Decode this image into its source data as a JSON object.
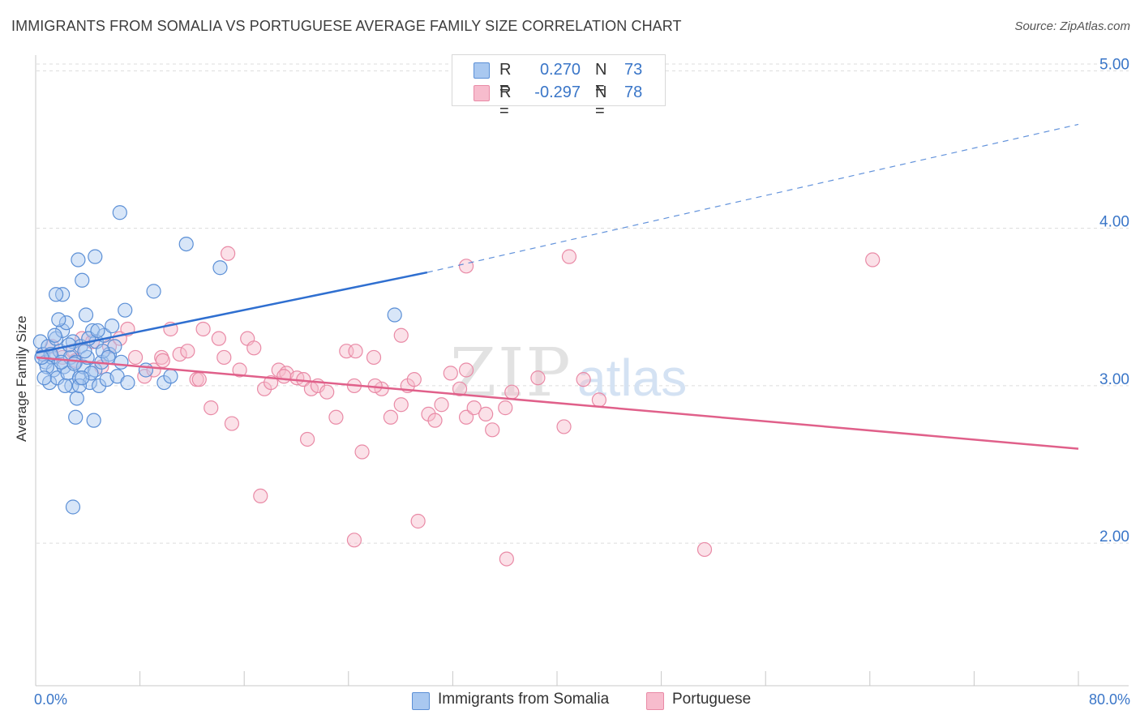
{
  "title": "IMMIGRANTS FROM SOMALIA VS PORTUGUESE AVERAGE FAMILY SIZE CORRELATION CHART",
  "source": "Source: ZipAtlas.com",
  "watermark": {
    "zip": "ZIP",
    "atlas": "atlas"
  },
  "colors": {
    "blue_fill": "#a9c8f0",
    "blue_stroke": "#5b8fd6",
    "blue_line": "#2f6fd0",
    "pink_fill": "#f7bccd",
    "pink_stroke": "#e98aa6",
    "pink_line": "#e0608a",
    "accent_text": "#3a76c8",
    "grid": "#dcdcdc"
  },
  "legend_top": {
    "rows": [
      {
        "r_label": "R =",
        "r_value": "0.270",
        "n_label": "N =",
        "n_value": "73"
      },
      {
        "r_label": "R =",
        "r_value": "-0.297",
        "n_label": "N =",
        "n_value": "78"
      }
    ]
  },
  "legend_bottom": {
    "items": [
      "Immigrants from Somalia",
      "Portuguese"
    ]
  },
  "chart_data": {
    "type": "scatter",
    "title": "IMMIGRANTS FROM SOMALIA VS PORTUGUESE AVERAGE FAMILY SIZE CORRELATION CHART",
    "xlabel": "",
    "ylabel": "Average Family Size",
    "x_tick_labels": [
      "0.0%",
      "80.0%"
    ],
    "xlim": [
      0,
      80
    ],
    "ylim": [
      1.1,
      5.1
    ],
    "y_ticks": [
      2.0,
      3.0,
      4.0,
      5.0
    ],
    "y_tick_labels": [
      "2.00",
      "3.00",
      "4.00",
      "5.00"
    ],
    "grid": true,
    "legend_position": "top-center",
    "series": [
      {
        "name": "Immigrants from Somalia",
        "r": 0.27,
        "n": 73,
        "trend": {
          "x0": 0,
          "y0": 3.21,
          "x_solid_end": 30,
          "y_solid_end": 3.72,
          "x1": 80,
          "y1": 4.66
        },
        "points": [
          [
            0.3,
            3.28
          ],
          [
            0.5,
            3.2
          ],
          [
            0.7,
            3.15
          ],
          [
            0.9,
            3.25
          ],
          [
            1.0,
            3.02
          ],
          [
            1.2,
            3.18
          ],
          [
            1.3,
            3.1
          ],
          [
            1.5,
            3.3
          ],
          [
            1.6,
            3.05
          ],
          [
            1.8,
            3.22
          ],
          [
            2.0,
            3.35
          ],
          [
            2.1,
            3.12
          ],
          [
            2.3,
            3.4
          ],
          [
            2.4,
            3.08
          ],
          [
            2.6,
            3.18
          ],
          [
            2.7,
            3.0
          ],
          [
            2.8,
            3.28
          ],
          [
            3.0,
            3.15
          ],
          [
            3.1,
            2.92
          ],
          [
            3.3,
            3.05
          ],
          [
            3.4,
            3.25
          ],
          [
            3.6,
            3.12
          ],
          [
            3.8,
            3.45
          ],
          [
            3.9,
            3.18
          ],
          [
            4.1,
            3.02
          ],
          [
            4.3,
            3.35
          ],
          [
            4.5,
            3.1
          ],
          [
            4.6,
            3.28
          ],
          [
            4.8,
            3.0
          ],
          [
            5.0,
            3.15
          ],
          [
            5.2,
            3.32
          ],
          [
            5.4,
            3.04
          ],
          [
            5.6,
            3.2
          ],
          [
            5.8,
            3.38
          ],
          [
            6.0,
            3.25
          ],
          [
            6.2,
            3.06
          ],
          [
            6.5,
            3.15
          ],
          [
            6.8,
            3.48
          ],
          [
            7.0,
            3.02
          ],
          [
            2.0,
            3.58
          ],
          [
            3.2,
            3.8
          ],
          [
            4.5,
            3.82
          ],
          [
            3.5,
            3.67
          ],
          [
            1.5,
            3.58
          ],
          [
            3.0,
            2.8
          ],
          [
            4.4,
            2.78
          ],
          [
            2.8,
            2.23
          ],
          [
            6.4,
            4.1
          ],
          [
            8.4,
            3.1
          ],
          [
            9.0,
            3.6
          ],
          [
            9.8,
            3.02
          ],
          [
            10.3,
            3.06
          ],
          [
            11.5,
            3.9
          ],
          [
            14.1,
            3.75
          ],
          [
            27.5,
            3.45
          ],
          [
            1.1,
            3.2
          ],
          [
            1.9,
            3.15
          ],
          [
            2.2,
            3.0
          ],
          [
            3.7,
            3.22
          ],
          [
            4.0,
            3.3
          ],
          [
            0.8,
            3.12
          ],
          [
            1.4,
            3.32
          ],
          [
            2.5,
            3.26
          ],
          [
            3.3,
            3.0
          ],
          [
            4.2,
            3.08
          ],
          [
            5.1,
            3.22
          ],
          [
            0.6,
            3.05
          ],
          [
            1.7,
            3.42
          ],
          [
            2.9,
            3.14
          ],
          [
            3.5,
            3.05
          ],
          [
            4.7,
            3.35
          ],
          [
            5.5,
            3.18
          ],
          [
            0.4,
            3.18
          ]
        ]
      },
      {
        "name": "Portuguese",
        "r": -0.297,
        "n": 78,
        "trend": {
          "x0": 0,
          "y0": 3.18,
          "x1": 80,
          "y1": 2.6
        },
        "points": [
          [
            0.5,
            3.2
          ],
          [
            1.2,
            3.25
          ],
          [
            2.0,
            3.18
          ],
          [
            2.8,
            3.22
          ],
          [
            3.5,
            3.3
          ],
          [
            4.3,
            3.28
          ],
          [
            5.0,
            3.12
          ],
          [
            5.6,
            3.25
          ],
          [
            6.4,
            3.3
          ],
          [
            7.0,
            3.36
          ],
          [
            7.6,
            3.18
          ],
          [
            8.3,
            3.06
          ],
          [
            9.0,
            3.1
          ],
          [
            9.6,
            3.18
          ],
          [
            10.3,
            3.36
          ],
          [
            11.0,
            3.2
          ],
          [
            11.6,
            3.22
          ],
          [
            12.3,
            3.04
          ],
          [
            12.8,
            3.36
          ],
          [
            13.4,
            2.86
          ],
          [
            14.0,
            3.3
          ],
          [
            14.4,
            3.18
          ],
          [
            15.0,
            2.76
          ],
          [
            15.6,
            3.1
          ],
          [
            16.2,
            3.3
          ],
          [
            16.7,
            3.24
          ],
          [
            17.5,
            2.98
          ],
          [
            18.0,
            3.02
          ],
          [
            18.6,
            3.1
          ],
          [
            19.2,
            3.08
          ],
          [
            20.0,
            3.05
          ],
          [
            20.5,
            3.04
          ],
          [
            21.1,
            2.98
          ],
          [
            21.6,
            3.0
          ],
          [
            22.3,
            2.96
          ],
          [
            23.0,
            2.8
          ],
          [
            23.8,
            3.22
          ],
          [
            24.4,
            3.0
          ],
          [
            25.0,
            2.58
          ],
          [
            25.9,
            3.18
          ],
          [
            26.5,
            2.98
          ],
          [
            27.2,
            2.8
          ],
          [
            28.0,
            2.88
          ],
          [
            28.5,
            3.0
          ],
          [
            29.0,
            3.04
          ],
          [
            30.1,
            2.82
          ],
          [
            30.6,
            2.78
          ],
          [
            31.1,
            2.88
          ],
          [
            31.8,
            3.08
          ],
          [
            32.5,
            2.98
          ],
          [
            33.0,
            2.8
          ],
          [
            33.6,
            2.86
          ],
          [
            34.5,
            2.82
          ],
          [
            35.0,
            2.72
          ],
          [
            36.0,
            2.86
          ],
          [
            36.5,
            2.96
          ],
          [
            38.5,
            3.05
          ],
          [
            40.5,
            2.74
          ],
          [
            42.0,
            3.04
          ],
          [
            43.2,
            2.91
          ],
          [
            33.0,
            3.1
          ],
          [
            28.0,
            3.32
          ],
          [
            24.5,
            3.22
          ],
          [
            20.8,
            2.66
          ],
          [
            17.2,
            2.3
          ],
          [
            24.4,
            2.02
          ],
          [
            29.3,
            2.14
          ],
          [
            36.1,
            1.9
          ],
          [
            51.3,
            1.96
          ],
          [
            12.5,
            3.04
          ],
          [
            14.7,
            3.84
          ],
          [
            40.9,
            3.82
          ],
          [
            33.0,
            3.76
          ],
          [
            64.2,
            3.8
          ],
          [
            19.0,
            3.06
          ],
          [
            26.0,
            3.0
          ],
          [
            9.7,
            3.16
          ],
          [
            3.0,
            3.16
          ]
        ]
      }
    ]
  }
}
